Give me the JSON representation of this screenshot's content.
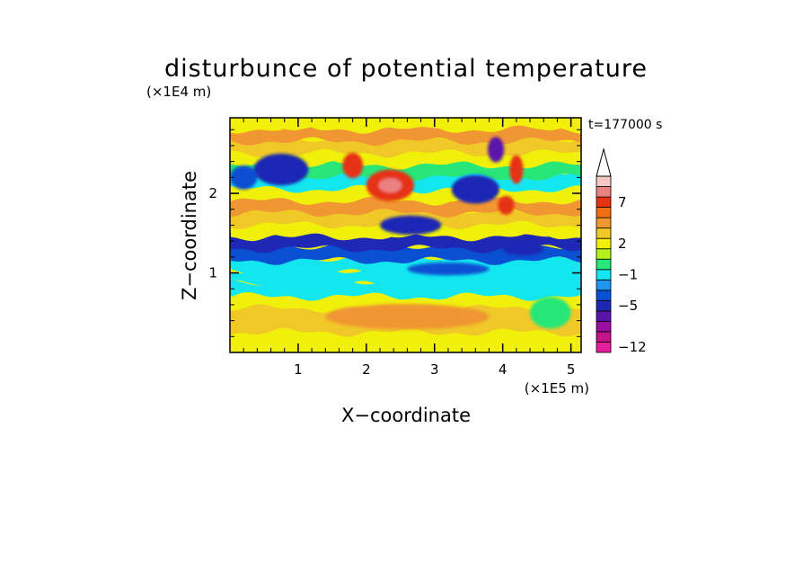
{
  "chart_data": {
    "type": "heatmap",
    "title": "disturbunce of potential temperature",
    "xlabel": "X−coordinate",
    "ylabel": "Z−coordinate",
    "x_unit": "(×1E5 m)",
    "y_unit": "(×1E4 m)",
    "time_label": "t=177000 s",
    "xlim": [
      0,
      5.15
    ],
    "ylim": [
      0,
      2.95
    ],
    "x_ticks": [
      {
        "value": 1,
        "label": "1"
      },
      {
        "value": 2,
        "label": "2"
      },
      {
        "value": 3,
        "label": "3"
      },
      {
        "value": 4,
        "label": "4"
      },
      {
        "value": 5,
        "label": "5"
      }
    ],
    "y_ticks": [
      {
        "value": 1,
        "label": "1"
      },
      {
        "value": 2,
        "label": "2"
      }
    ],
    "colorbar": {
      "levels": [
        {
          "label": "−12",
          "color": "#e61e9b"
        },
        {
          "label": "",
          "color": "#c3148c"
        },
        {
          "label": "",
          "color": "#9b0fa0"
        },
        {
          "label": "",
          "color": "#5a14aa"
        },
        {
          "label": "−5",
          "color": "#1e28b4"
        },
        {
          "label": "",
          "color": "#0a50d2"
        },
        {
          "label": "",
          "color": "#1e96f0"
        },
        {
          "label": "−1",
          "color": "#14e6f0"
        },
        {
          "label": "",
          "color": "#28e678"
        },
        {
          "label": "",
          "color": "#b4f01e"
        },
        {
          "label": "2",
          "color": "#f0f00a"
        },
        {
          "label": "",
          "color": "#f0c828"
        },
        {
          "label": "",
          "color": "#f09632"
        },
        {
          "label": "",
          "color": "#f06e14"
        },
        {
          "label": "7",
          "color": "#e63214"
        },
        {
          "label": "",
          "color": "#eb8282"
        },
        {
          "label": "",
          "color": "#f5c8c8"
        }
      ],
      "extend": "max"
    },
    "bands": [
      {
        "z": 0.05,
        "level": 10
      },
      {
        "z": 0.2,
        "level": 10
      },
      {
        "z": 0.35,
        "level": 11
      },
      {
        "z": 0.5,
        "level": 11
      },
      {
        "z": 0.65,
        "level": 10
      },
      {
        "z": 0.8,
        "level": 7
      },
      {
        "z": 0.95,
        "level": 7
      },
      {
        "z": 1.1,
        "level": 7
      },
      {
        "z": 1.25,
        "level": 5
      },
      {
        "z": 1.4,
        "level": 4
      },
      {
        "z": 1.55,
        "level": 10
      },
      {
        "z": 1.7,
        "level": 11
      },
      {
        "z": 1.85,
        "level": 12
      },
      {
        "z": 2.0,
        "level": 10
      },
      {
        "z": 2.15,
        "level": 7
      },
      {
        "z": 2.3,
        "level": 8
      },
      {
        "z": 2.45,
        "level": 10
      },
      {
        "z": 2.6,
        "level": 11
      },
      {
        "z": 2.75,
        "level": 12
      },
      {
        "z": 2.9,
        "level": 10
      }
    ],
    "features": [
      {
        "x": 2.35,
        "z": 2.1,
        "rx": 0.35,
        "rz": 0.2,
        "level": 14
      },
      {
        "x": 2.35,
        "z": 2.1,
        "rx": 0.17,
        "rz": 0.09,
        "level": 15
      },
      {
        "x": 1.8,
        "z": 2.35,
        "rx": 0.15,
        "rz": 0.16,
        "level": 14
      },
      {
        "x": 0.75,
        "z": 2.3,
        "rx": 0.4,
        "rz": 0.2,
        "level": 4
      },
      {
        "x": 0.2,
        "z": 2.2,
        "rx": 0.2,
        "rz": 0.15,
        "level": 5
      },
      {
        "x": 2.65,
        "z": 1.6,
        "rx": 0.45,
        "rz": 0.12,
        "level": 4
      },
      {
        "x": 3.6,
        "z": 2.05,
        "rx": 0.35,
        "rz": 0.18,
        "level": 4
      },
      {
        "x": 4.3,
        "z": 1.3,
        "rx": 0.3,
        "rz": 0.08,
        "level": 4
      },
      {
        "x": 3.2,
        "z": 1.05,
        "rx": 0.6,
        "rz": 0.08,
        "level": 5
      },
      {
        "x": 4.05,
        "z": 1.85,
        "rx": 0.12,
        "rz": 0.12,
        "level": 14
      },
      {
        "x": 3.9,
        "z": 2.55,
        "rx": 0.12,
        "rz": 0.16,
        "level": 3
      },
      {
        "x": 4.2,
        "z": 2.3,
        "rx": 0.1,
        "rz": 0.18,
        "level": 14
      },
      {
        "x": 2.6,
        "z": 0.45,
        "rx": 1.2,
        "rz": 0.16,
        "level": 12
      },
      {
        "x": 4.7,
        "z": 0.5,
        "rx": 0.3,
        "rz": 0.2,
        "level": 8
      }
    ]
  }
}
